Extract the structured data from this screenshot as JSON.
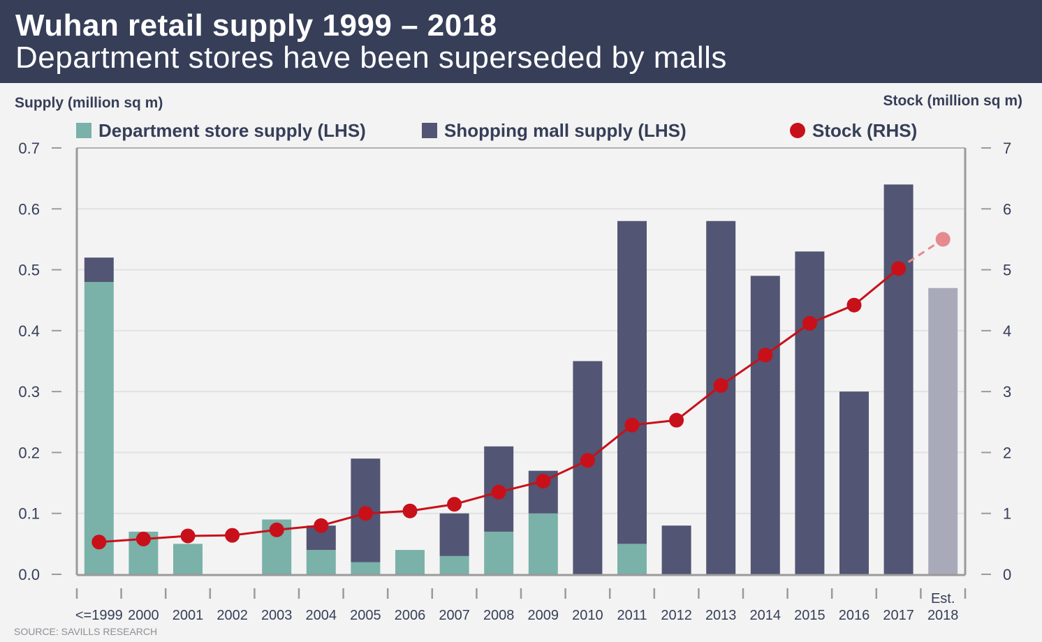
{
  "header": {
    "title": "Wuhan retail supply 1999 – 2018",
    "subtitle": "Department stores have been superseded by malls"
  },
  "source": "SOURCE: SAVILLS RESEARCH",
  "colors": {
    "header_bg": "#363e58",
    "department": "#7ab1a8",
    "mall": "#525573",
    "mall_estimate": "#a9aab9",
    "stock": "#c8101a",
    "stock_estimate": "#e58a8e",
    "text": "#363e58"
  },
  "chart_data": {
    "type": "bar",
    "subtype": "stacked bar with line overlay (dual axis)",
    "title": "Wuhan retail supply 1999 – 2018",
    "subtitle": "Department stores have been superseded by malls",
    "ylabel": "Supply (million sq m)",
    "y2label": "Stock (million sq m)",
    "ylim": [
      0,
      0.7
    ],
    "y2lim": [
      0,
      7
    ],
    "yticks": [
      "0.0",
      "0.1",
      "0.2",
      "0.3",
      "0.4",
      "0.5",
      "0.6",
      "0.7"
    ],
    "y2ticks": [
      "0",
      "1",
      "2",
      "3",
      "4",
      "5",
      "6",
      "7"
    ],
    "grid": true,
    "legend_position": "top",
    "categories": [
      "<=1999",
      "2000",
      "2001",
      "2002",
      "2003",
      "2004",
      "2005",
      "2006",
      "2007",
      "2008",
      "2009",
      "2010",
      "2011",
      "2012",
      "2013",
      "2014",
      "2015",
      "2016",
      "2017",
      "2018"
    ],
    "category_notes": {
      "2018": "Est."
    },
    "series": [
      {
        "name": "Department store supply (LHS)",
        "type": "bar",
        "axis": "left",
        "values": [
          0.48,
          0.07,
          0.05,
          0,
          0.09,
          0.04,
          0.02,
          0.04,
          0.03,
          0.07,
          0.1,
          0,
          0.05,
          0,
          0,
          0,
          0,
          0,
          0,
          0
        ]
      },
      {
        "name": "Shopping mall supply (LHS)",
        "type": "bar",
        "axis": "left",
        "values": [
          0.04,
          0,
          0,
          0,
          0,
          0.04,
          0.17,
          0,
          0.07,
          0.14,
          0.07,
          0.35,
          0.53,
          0.08,
          0.58,
          0.49,
          0.53,
          0.3,
          0.64,
          0.47
        ],
        "estimate_index": 19
      },
      {
        "name": "Stock (RHS)",
        "type": "line",
        "axis": "right",
        "values": [
          0.53,
          0.58,
          0.63,
          0.64,
          0.73,
          0.8,
          1.0,
          1.04,
          1.15,
          1.35,
          1.53,
          1.87,
          2.45,
          2.53,
          3.1,
          3.6,
          4.12,
          4.42,
          5.02,
          5.5
        ],
        "estimate_index": 19
      }
    ]
  }
}
